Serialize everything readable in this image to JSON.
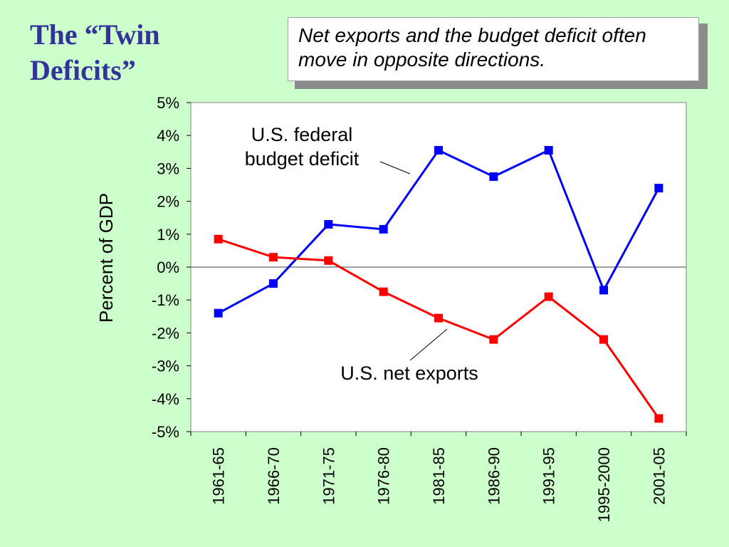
{
  "slide": {
    "title": "The “Twin Deficits”",
    "callout": "Net exports and the budget deficit often move in opposite directions."
  },
  "chart_data": {
    "type": "line",
    "title": "",
    "xlabel": "",
    "ylabel": "Percent of GDP",
    "categories": [
      "1961-65",
      "1966-70",
      "1971-75",
      "1976-80",
      "1981-85",
      "1986-90",
      "1991-95",
      "1995-2000",
      "2001-05"
    ],
    "ylim": [
      -5,
      5
    ],
    "yticks": [
      5,
      4,
      3,
      2,
      1,
      0,
      -1,
      -2,
      -3,
      -4,
      -5
    ],
    "ytick_labels": [
      "5%",
      "4%",
      "3%",
      "2%",
      "1%",
      "0%",
      "-1%",
      "-2%",
      "-3%",
      "-4%",
      "-5%"
    ],
    "grid": false,
    "zero_line": true,
    "series": [
      {
        "name": "U.S. federal budget deficit",
        "color": "#0000ff",
        "values": [
          -1.4,
          -0.5,
          1.3,
          1.15,
          3.55,
          2.75,
          3.55,
          -0.7,
          2.4
        ]
      },
      {
        "name": "U.S. net exports",
        "color": "#ff0000",
        "values": [
          0.85,
          0.3,
          0.2,
          -0.75,
          -1.55,
          -2.2,
          -0.9,
          -2.2,
          -4.6
        ]
      }
    ],
    "annotations": [
      {
        "lines": [
          "U.S. federal",
          "budget deficit"
        ],
        "series": 0
      },
      {
        "lines": [
          "U.S. net exports"
        ],
        "series": 1
      }
    ]
  }
}
